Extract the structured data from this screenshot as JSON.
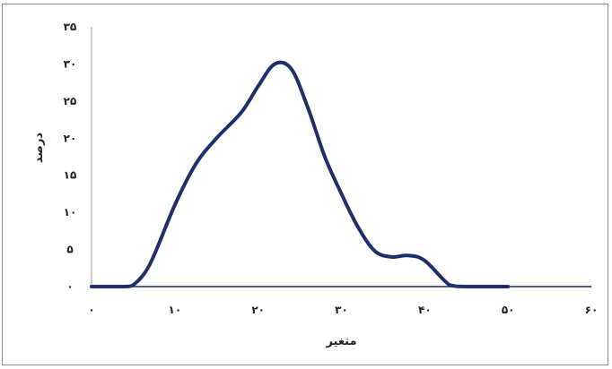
{
  "chart_data": {
    "type": "line",
    "title": "",
    "xlabel": "متغیر",
    "ylabel": "درصد",
    "xlim": [
      0,
      60
    ],
    "ylim": [
      0,
      35
    ],
    "x_ticks": [
      0,
      10,
      20,
      30,
      40,
      50,
      60
    ],
    "y_ticks": [
      0,
      5,
      10,
      15,
      20,
      25,
      30,
      35
    ],
    "x_tick_labels": [
      "۰",
      "۱۰",
      "۲۰",
      "۳۰",
      "۴۰",
      "۵۰",
      "۶۰"
    ],
    "y_tick_labels": [
      "۰",
      "۵",
      "۱۰",
      "۱۵",
      "۲۰",
      "۲۵",
      "۳۰",
      "۳۵"
    ],
    "grid": false,
    "legend": "none",
    "series": [
      {
        "color": "#1f2f6b",
        "x": [
          0,
          4,
          5,
          7,
          10,
          12.5,
          15,
          18,
          20,
          22,
          24,
          26,
          28,
          30,
          32,
          34,
          36,
          38,
          40,
          43,
          45,
          50
        ],
        "y": [
          0,
          0,
          0.2,
          3,
          11,
          16.5,
          20,
          23.5,
          27,
          30,
          29.3,
          24,
          17.5,
          12.5,
          8,
          4.8,
          4,
          4.2,
          3.5,
          0.2,
          0,
          0
        ]
      }
    ]
  }
}
